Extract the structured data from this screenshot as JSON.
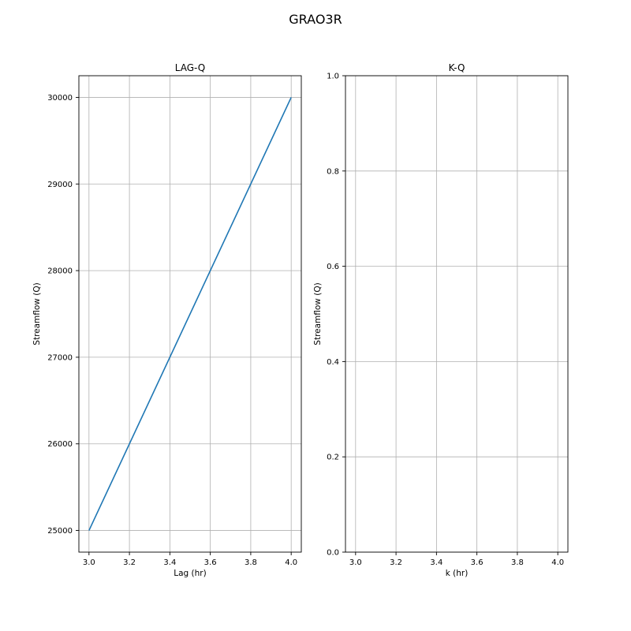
{
  "figure": {
    "suptitle": "GRAO3R"
  },
  "chart_data": [
    {
      "type": "line",
      "title": "LAG-Q",
      "xlabel": "Lag (hr)",
      "ylabel": "Streamflow (Q)",
      "xlim": [
        2.95,
        4.05
      ],
      "ylim": [
        24750,
        30250
      ],
      "xticks": [
        3.0,
        3.2,
        3.4,
        3.6,
        3.8,
        4.0
      ],
      "xtick_labels": [
        "3.0",
        "3.2",
        "3.4",
        "3.6",
        "3.8",
        "4.0"
      ],
      "yticks": [
        25000,
        26000,
        27000,
        28000,
        29000,
        30000
      ],
      "ytick_labels": [
        "25000",
        "26000",
        "27000",
        "28000",
        "29000",
        "30000"
      ],
      "grid": true,
      "series": [
        {
          "color": "#1f77b4",
          "x": [
            3.0,
            4.0
          ],
          "y": [
            25000,
            30000
          ]
        }
      ]
    },
    {
      "type": "line",
      "title": "K-Q",
      "xlabel": "k (hr)",
      "ylabel": "Streamflow (Q)",
      "xlim": [
        2.95,
        4.05
      ],
      "ylim": [
        0.0,
        1.0
      ],
      "xticks": [
        3.0,
        3.2,
        3.4,
        3.6,
        3.8,
        4.0
      ],
      "xtick_labels": [
        "3.0",
        "3.2",
        "3.4",
        "3.6",
        "3.8",
        "4.0"
      ],
      "yticks": [
        0.0,
        0.2,
        0.4,
        0.6,
        0.8,
        1.0
      ],
      "ytick_labels": [
        "0.0",
        "0.2",
        "0.4",
        "0.6",
        "0.8",
        "1.0"
      ],
      "grid": true,
      "series": []
    }
  ]
}
